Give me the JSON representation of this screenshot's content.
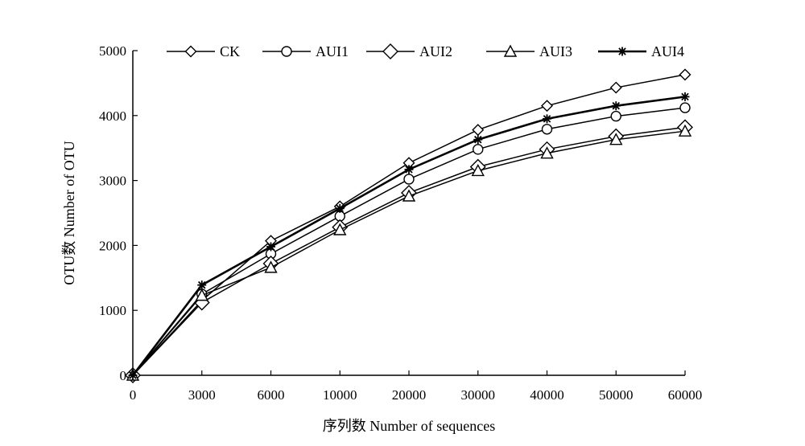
{
  "chart_data": {
    "type": "line",
    "xlabel": "序列数 Number of sequences",
    "ylabel": "OTU数 Number of OTU",
    "categories": [
      "0",
      "3000",
      "6000",
      "10000",
      "20000",
      "30000",
      "40000",
      "50000",
      "60000"
    ],
    "ylim": [
      0,
      5000
    ],
    "yticks": [
      "0",
      "1000",
      "2000",
      "3000",
      "4000",
      "5000"
    ],
    "grid": false,
    "legend_position": "top",
    "series": [
      {
        "name": "CK",
        "marker": "diamond-small",
        "line_weight": "normal",
        "values": [
          0,
          1150,
          2070,
          2600,
          3270,
          3780,
          4150,
          4430,
          4630
        ]
      },
      {
        "name": "AUI1",
        "marker": "circle",
        "line_weight": "normal",
        "values": [
          0,
          1250,
          1870,
          2450,
          3020,
          3480,
          3790,
          3990,
          4120
        ]
      },
      {
        "name": "AUI2",
        "marker": "diamond",
        "line_weight": "normal",
        "values": [
          0,
          1120,
          1720,
          2280,
          2810,
          3210,
          3480,
          3680,
          3820
        ]
      },
      {
        "name": "AUI3",
        "marker": "triangle",
        "line_weight": "normal",
        "values": [
          0,
          1230,
          1660,
          2240,
          2760,
          3150,
          3420,
          3630,
          3760
        ]
      },
      {
        "name": "AUI4",
        "marker": "star",
        "line_weight": "bold",
        "values": [
          0,
          1390,
          1980,
          2570,
          3170,
          3630,
          3950,
          4150,
          4290
        ]
      }
    ]
  }
}
